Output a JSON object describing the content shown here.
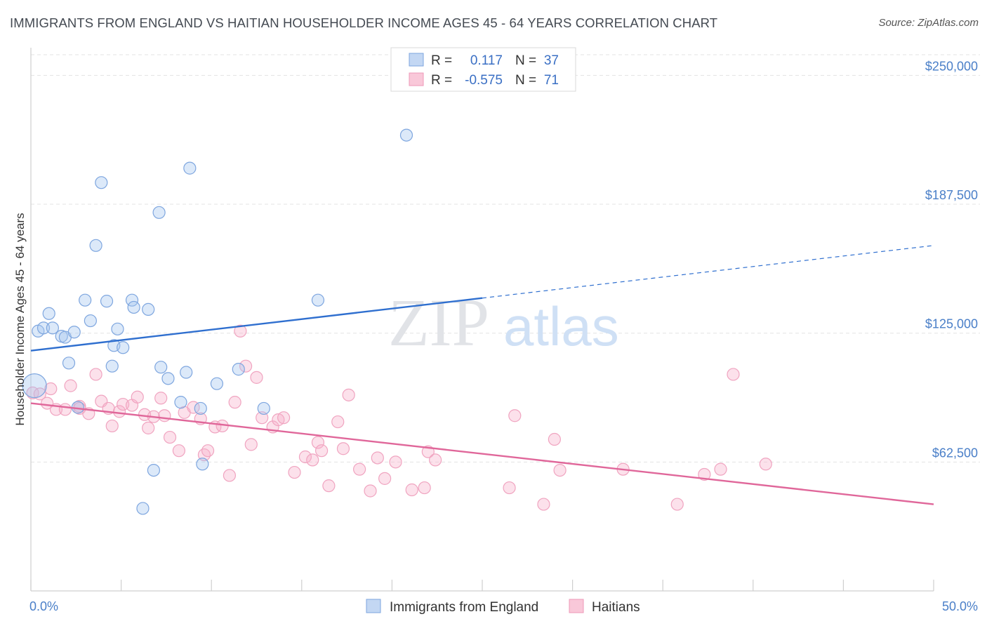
{
  "title": "IMMIGRANTS FROM ENGLAND VS HAITIAN HOUSEHOLDER INCOME AGES 45 - 64 YEARS CORRELATION CHART",
  "source": "Source: ZipAtlas.com",
  "watermark": {
    "zip": "ZIP",
    "atlas": "atlas"
  },
  "legend_top": {
    "r_label": "R =",
    "n_label": "N =",
    "rows": [
      {
        "series": "Immigrants from England",
        "r": "0.117",
        "n": "37"
      },
      {
        "series": "Haitians",
        "r": "-0.575",
        "n": "71"
      }
    ]
  },
  "chart_data": {
    "type": "scatter",
    "title": "IMMIGRANTS FROM ENGLAND VS HAITIAN HOUSEHOLDER INCOME AGES 45 - 64 YEARS CORRELATION CHART",
    "xlabel": "",
    "ylabel": "Householder Income Ages 45 - 64 years",
    "xlim": [
      0,
      50
    ],
    "ylim": [
      0,
      260000
    ],
    "x_tick_labels": [
      "0.0%",
      "50.0%"
    ],
    "y_ticks": [
      62500,
      125000,
      187500,
      250000
    ],
    "y_tick_labels": [
      "$62,500",
      "$125,000",
      "$187,500",
      "$250,000"
    ],
    "grid": true,
    "legend_placement": "bottom-center",
    "colors": {
      "england": "#6f9fe0",
      "haitians": "#f08cb0",
      "england_line": "#2f6fcf",
      "haitians_line": "#e0679a"
    },
    "series": [
      {
        "name": "Immigrants from England",
        "points": [
          [
            0.2,
            99500
          ],
          [
            0.4,
            126000
          ],
          [
            0.7,
            127500
          ],
          [
            1.0,
            134500
          ],
          [
            1.2,
            127500
          ],
          [
            1.7,
            123500
          ],
          [
            1.9,
            123000
          ],
          [
            2.1,
            110500
          ],
          [
            2.4,
            125500
          ],
          [
            2.6,
            89000
          ],
          [
            3.0,
            141000
          ],
          [
            3.3,
            131000
          ],
          [
            3.6,
            167500
          ],
          [
            3.9,
            198000
          ],
          [
            4.2,
            140500
          ],
          [
            4.6,
            119000
          ],
          [
            4.8,
            127000
          ],
          [
            5.1,
            118000
          ],
          [
            5.6,
            141000
          ],
          [
            5.7,
            137500
          ],
          [
            6.5,
            136500
          ],
          [
            6.8,
            58500
          ],
          [
            7.1,
            183500
          ],
          [
            7.2,
            108500
          ],
          [
            7.6,
            103000
          ],
          [
            8.3,
            91500
          ],
          [
            8.6,
            106000
          ],
          [
            8.8,
            205000
          ],
          [
            9.4,
            88500
          ],
          [
            9.5,
            61500
          ],
          [
            10.3,
            100500
          ],
          [
            11.5,
            107500
          ],
          [
            12.9,
            88500
          ],
          [
            15.9,
            141000
          ],
          [
            20.8,
            221000
          ],
          [
            6.2,
            40000
          ],
          [
            4.5,
            109000
          ]
        ],
        "trend": {
          "x_start": 0,
          "y_start": 116500,
          "x_solid_end": 25,
          "y_solid_end": 142000,
          "x_end": 50,
          "y_end": 167500
        }
      },
      {
        "name": "Haitians",
        "points": [
          [
            0.1,
            96000
          ],
          [
            0.5,
            95500
          ],
          [
            0.9,
            91000
          ],
          [
            1.1,
            98000
          ],
          [
            1.4,
            88000
          ],
          [
            1.9,
            88000
          ],
          [
            2.2,
            99500
          ],
          [
            2.7,
            89500
          ],
          [
            3.2,
            86000
          ],
          [
            3.6,
            105000
          ],
          [
            3.9,
            92000
          ],
          [
            4.3,
            88500
          ],
          [
            4.5,
            80000
          ],
          [
            4.9,
            87000
          ],
          [
            5.1,
            90500
          ],
          [
            5.6,
            90000
          ],
          [
            5.9,
            94000
          ],
          [
            6.3,
            85500
          ],
          [
            6.5,
            79000
          ],
          [
            6.8,
            84500
          ],
          [
            7.2,
            93500
          ],
          [
            7.4,
            85000
          ],
          [
            7.7,
            74500
          ],
          [
            8.2,
            68000
          ],
          [
            8.5,
            86500
          ],
          [
            9.0,
            89000
          ],
          [
            9.4,
            83500
          ],
          [
            9.6,
            66000
          ],
          [
            9.8,
            68000
          ],
          [
            10.2,
            79500
          ],
          [
            10.6,
            80000
          ],
          [
            11.0,
            56000
          ],
          [
            11.3,
            91500
          ],
          [
            11.6,
            126000
          ],
          [
            11.9,
            109000
          ],
          [
            12.2,
            71000
          ],
          [
            12.5,
            103500
          ],
          [
            12.8,
            84000
          ],
          [
            13.4,
            79500
          ],
          [
            13.7,
            83000
          ],
          [
            14.0,
            84000
          ],
          [
            14.6,
            57500
          ],
          [
            15.2,
            65000
          ],
          [
            15.6,
            63500
          ],
          [
            15.9,
            72000
          ],
          [
            16.1,
            68000
          ],
          [
            16.5,
            51000
          ],
          [
            17.0,
            82000
          ],
          [
            17.3,
            69000
          ],
          [
            17.6,
            95000
          ],
          [
            18.2,
            59000
          ],
          [
            18.8,
            48500
          ],
          [
            19.2,
            64500
          ],
          [
            19.6,
            54500
          ],
          [
            20.2,
            62500
          ],
          [
            21.1,
            49000
          ],
          [
            21.8,
            50000
          ],
          [
            22.0,
            67500
          ],
          [
            22.4,
            63500
          ],
          [
            26.5,
            50000
          ],
          [
            26.8,
            85000
          ],
          [
            28.4,
            42000
          ],
          [
            29.0,
            73500
          ],
          [
            29.3,
            58500
          ],
          [
            32.8,
            59000
          ],
          [
            35.8,
            42000
          ],
          [
            37.3,
            56500
          ],
          [
            38.2,
            59000
          ],
          [
            38.9,
            105000
          ],
          [
            40.7,
            61500
          ],
          [
            2.7,
            88500
          ]
        ],
        "trend": {
          "x_start": 0,
          "y_start": 91000,
          "x_end": 50,
          "y_end": 42000
        }
      }
    ]
  },
  "bottom_legend": {
    "items": [
      {
        "label": "Immigrants from England"
      },
      {
        "label": "Haitians"
      }
    ]
  }
}
